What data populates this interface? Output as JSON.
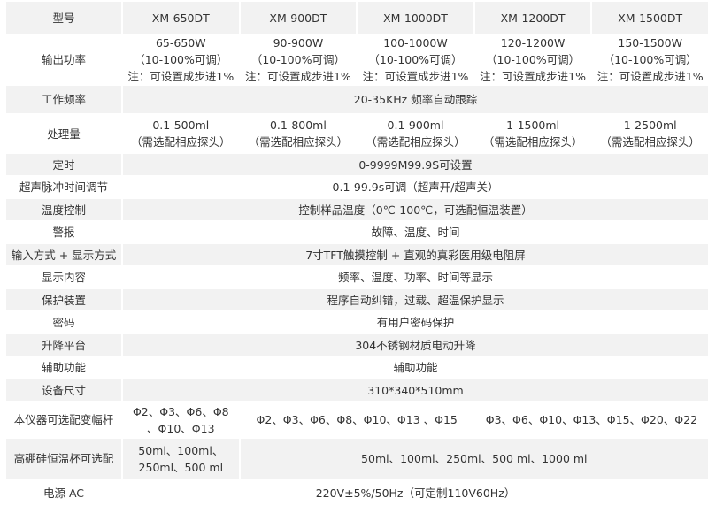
{
  "header": {
    "label": "型号",
    "models": [
      "XM-650DT",
      "XM-900DT",
      "XM-1000DT",
      "XM-1200DT",
      "XM-1500DT"
    ]
  },
  "power": {
    "label": "输出功率",
    "cells": [
      [
        "65-650W",
        "（10-100%可调）",
        "注：可设置成步进1%"
      ],
      [
        "90-900W",
        "（10-100%可调）",
        "注：可设置成步进1%"
      ],
      [
        "100-1000W",
        "（10-100%可调）",
        "注：可设置成步进1%"
      ],
      [
        "120-1200W",
        "（10-100%可调）",
        "注：可设置成步进1%"
      ],
      [
        "150-1500W",
        "（10-100%可调）",
        "注：可设置成步进1%"
      ]
    ]
  },
  "frequency": {
    "label": "工作频率",
    "value": "20-35KHz 频率自动跟踪"
  },
  "capacity": {
    "label": "处理量",
    "cells": [
      [
        "0.1-500ml",
        "（需选配相应探头）"
      ],
      [
        "0.1-800ml",
        "（需选配相应探头）"
      ],
      [
        "0.1-900ml",
        "（需选配相应探头）"
      ],
      [
        "1-1500ml",
        "（需选配相应探头）"
      ],
      [
        "1-2500ml",
        "（需选配相应探头）"
      ]
    ]
  },
  "rows": [
    {
      "label": "定时",
      "value": "0-9999M99.9S可设置"
    },
    {
      "label": "超声脉冲时间调节",
      "value": "0.1-99.9s可调（超声开/超声关）"
    },
    {
      "label": "温度控制",
      "value": "控制样品温度（0℃-100℃，可选配恒温装置）"
    },
    {
      "label": "警报",
      "value": "故障、温度、时间"
    },
    {
      "label": "输入方式 + 显示方式",
      "value": "7寸TFT触摸控制 + 直观的真彩医用级电阻屏"
    },
    {
      "label": "显示内容",
      "value": "频率、温度、功率、时间等显示"
    },
    {
      "label": "保护装置",
      "value": "程序自动纠错，过载、超温保护显示"
    },
    {
      "label": "密码",
      "value": "有用户密码保护"
    },
    {
      "label": "升降平台",
      "value": "304不锈钢材质电动升降"
    },
    {
      "label": "辅助功能",
      "value": "辅助功能"
    },
    {
      "label": "设备尺寸",
      "value": "310*340*510mm"
    }
  ],
  "horn": {
    "label": "本仪器可选配变幅杆",
    "a": [
      "Φ2、Φ3、Φ6、Φ8",
      "、Φ10、Φ13"
    ],
    "b": "Φ2、Φ3、Φ6、Φ8、Φ10、Φ13 、Φ15",
    "c": "Φ3、Φ6、Φ10、Φ13、Φ15、Φ20、Φ22"
  },
  "cup": {
    "label": "高硼硅恒温杯可选配",
    "a": [
      "50ml、100ml、",
      "250ml、500 ml"
    ],
    "b": "50ml、100ml、250ml、500 ml、1000 ml"
  },
  "supply": {
    "label": "电源 AC",
    "value": "220V±5%/50Hz（可定制110V60Hz）"
  }
}
